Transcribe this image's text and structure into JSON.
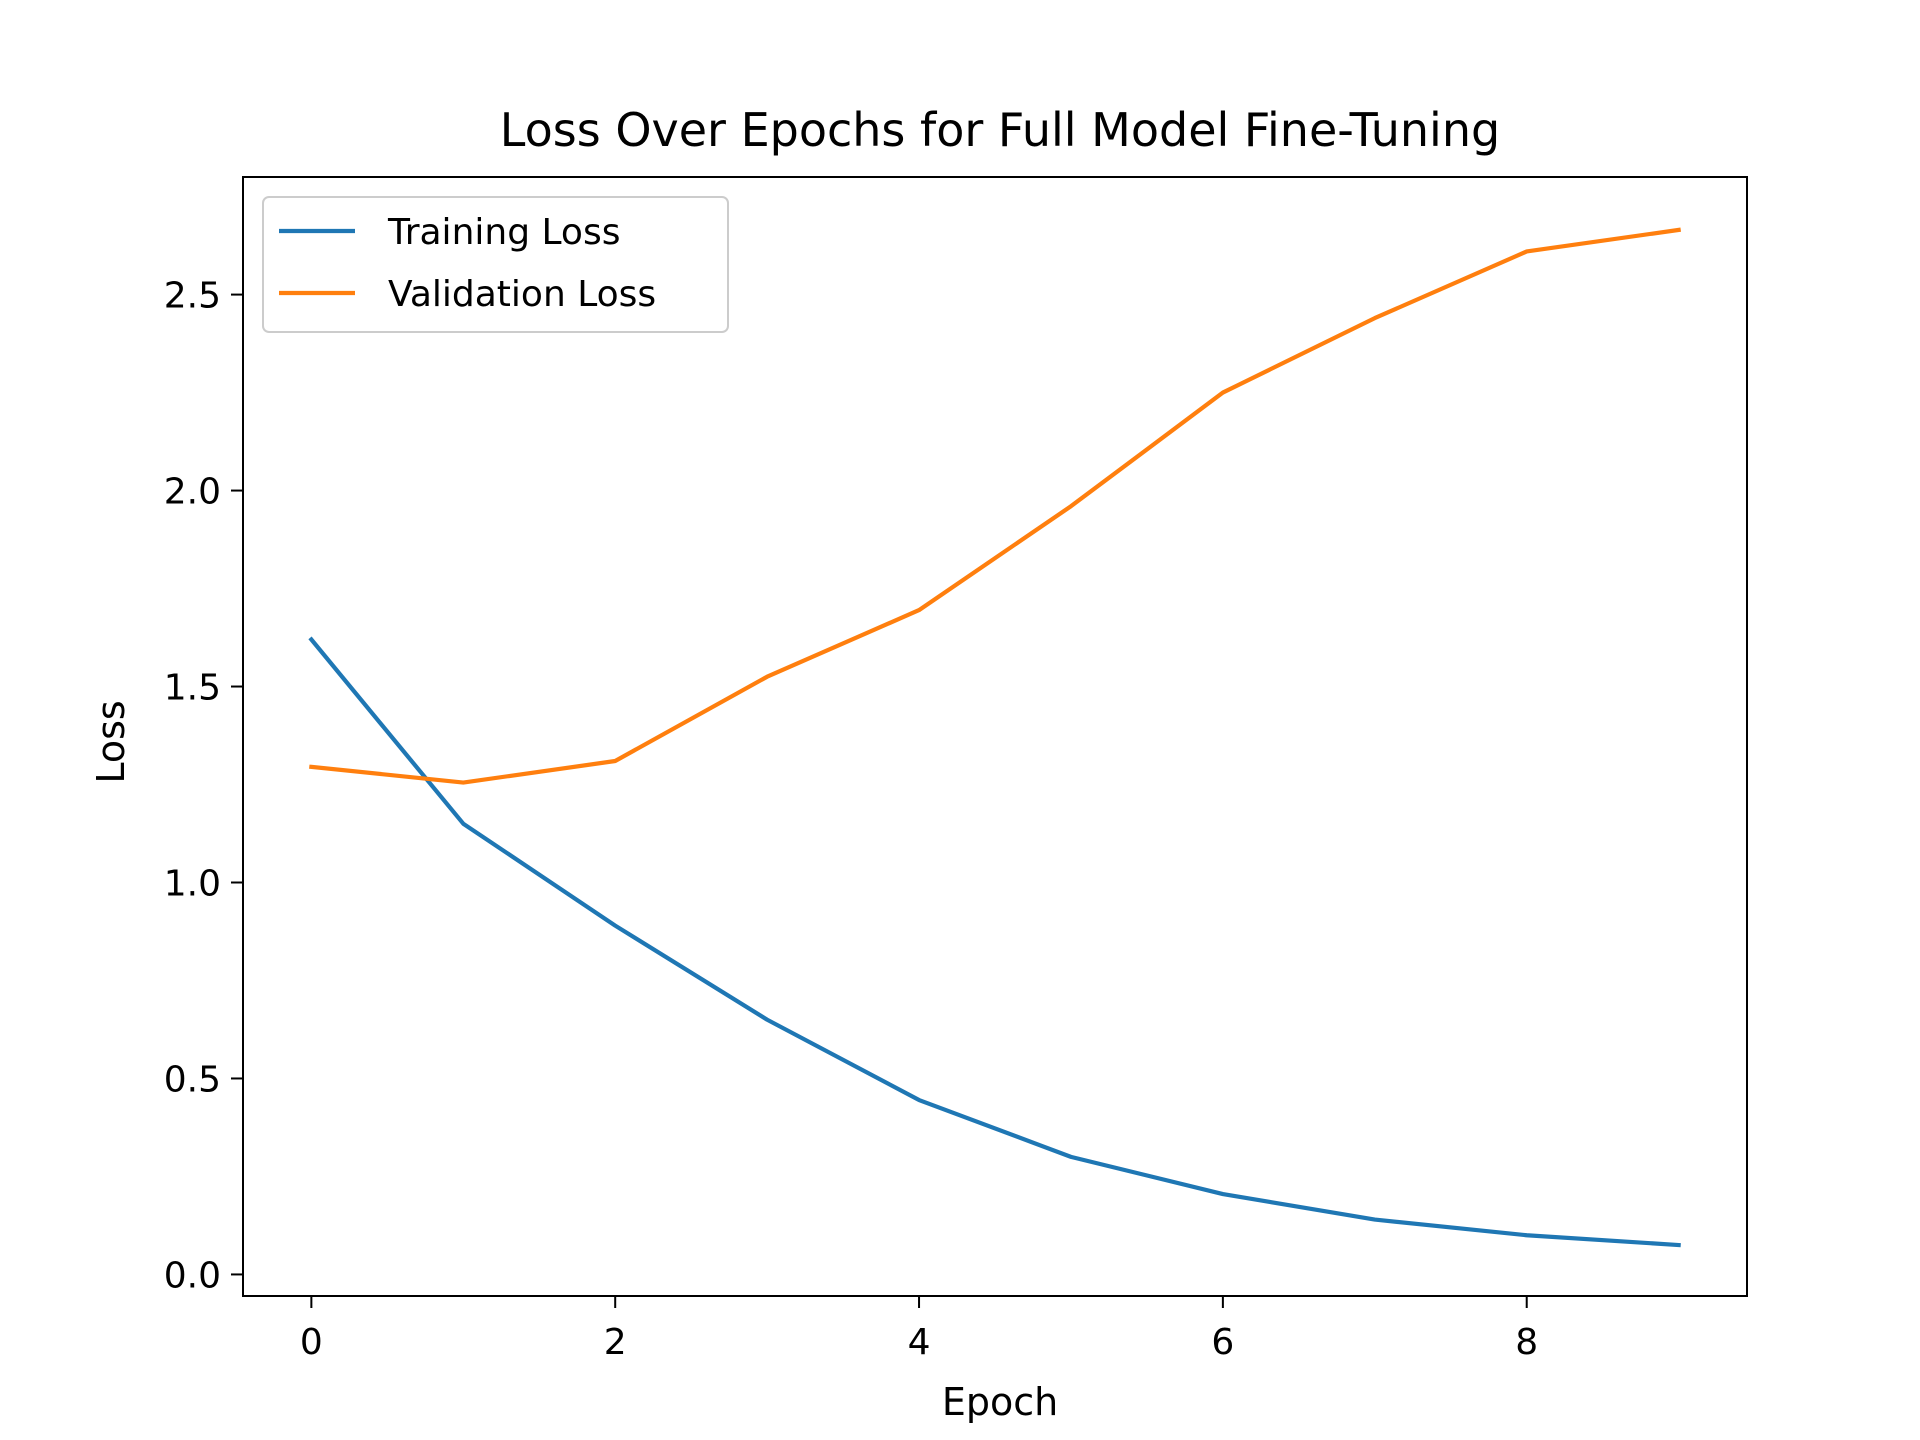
{
  "chart_data": {
    "type": "line",
    "title": "Loss Over Epochs for Full Model Fine-Tuning",
    "xlabel": "Epoch",
    "ylabel": "Loss",
    "x": [
      0,
      1,
      2,
      3,
      4,
      5,
      6,
      7,
      8,
      9
    ],
    "xlim": [
      -0.45,
      9.45
    ],
    "ylim": [
      -0.055,
      2.8
    ],
    "xticks": [
      0,
      2,
      4,
      6,
      8
    ],
    "xtick_labels": [
      "0",
      "2",
      "4",
      "6",
      "8"
    ],
    "yticks": [
      0.0,
      0.5,
      1.0,
      1.5,
      2.0,
      2.5
    ],
    "ytick_labels": [
      "0.0",
      "0.5",
      "1.0",
      "1.5",
      "2.0",
      "2.5"
    ],
    "grid": false,
    "legend_position": "upper-left",
    "series": [
      {
        "name": "Training Loss",
        "color": "#1f77b4",
        "values": [
          1.62,
          1.15,
          0.89,
          0.65,
          0.445,
          0.3,
          0.205,
          0.14,
          0.1,
          0.075
        ]
      },
      {
        "name": "Validation Loss",
        "color": "#ff7f0e",
        "values": [
          1.295,
          1.255,
          1.31,
          1.525,
          1.695,
          1.96,
          2.25,
          2.44,
          2.61,
          2.665
        ]
      }
    ]
  }
}
